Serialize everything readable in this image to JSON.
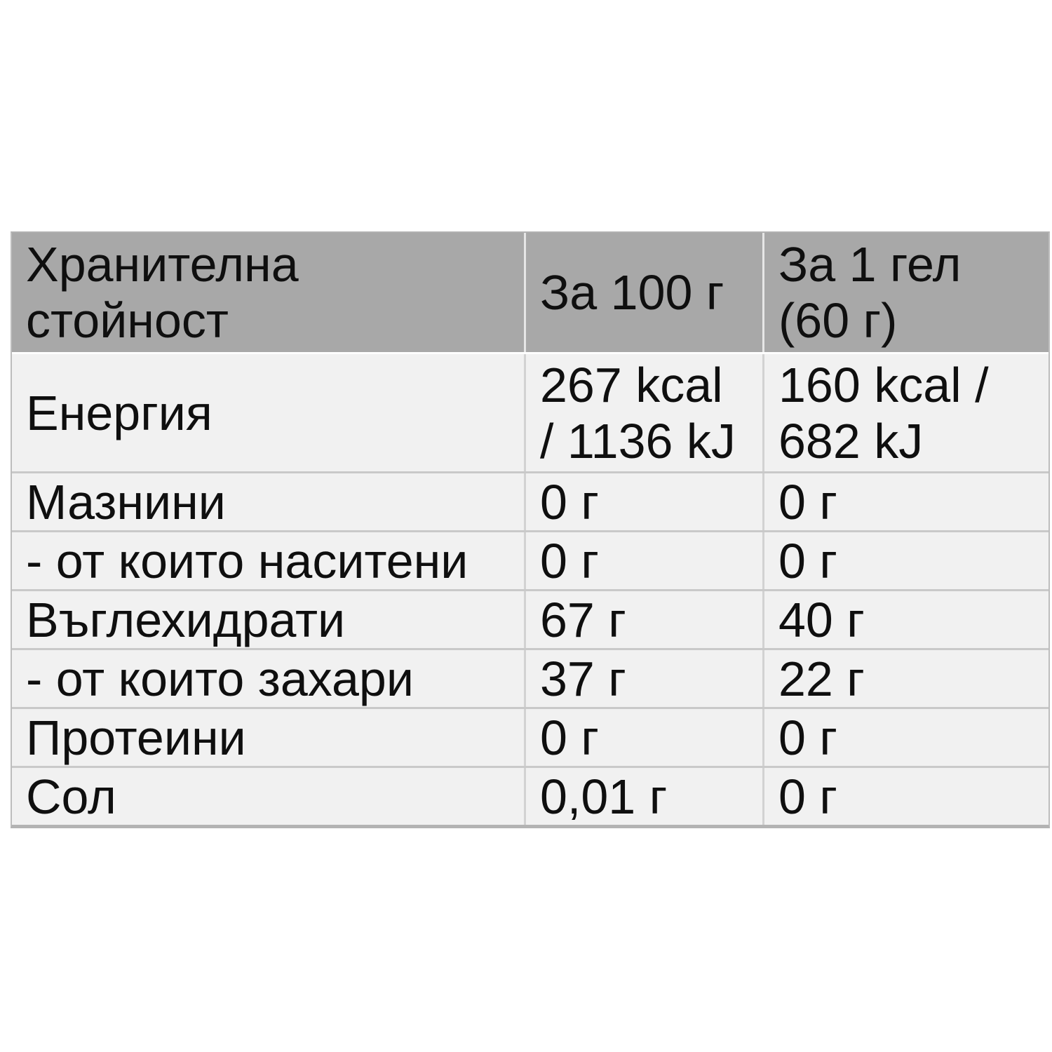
{
  "table": {
    "header": {
      "cells": [
        "Хранителна\nстойност",
        "За 100 г",
        "За 1 гел\n(60 г)"
      ]
    },
    "rows": [
      {
        "cells": [
          "Енергия",
          "267 kcal\n/ 1136 kJ",
          "160 kcal /\n682 kJ"
        ]
      },
      {
        "cells": [
          "Мазнини",
          "0 г",
          "0 г"
        ]
      },
      {
        "cells": [
          "- от които наситени",
          "0 г",
          "0 г"
        ]
      },
      {
        "cells": [
          "Въглехидрати",
          "67 г",
          "40 г"
        ]
      },
      {
        "cells": [
          "- от които захари",
          "37 г",
          "22 г"
        ]
      },
      {
        "cells": [
          "Протеини",
          "0 г",
          "0 г"
        ]
      },
      {
        "cells": [
          "Сол",
          "0,01 г",
          "0 г"
        ]
      }
    ],
    "colors": {
      "header_bg": "#a8a8a8",
      "row_bg": "#f1f1f1",
      "divider": "#c9c9c9",
      "text": "#0f0f0f"
    }
  }
}
